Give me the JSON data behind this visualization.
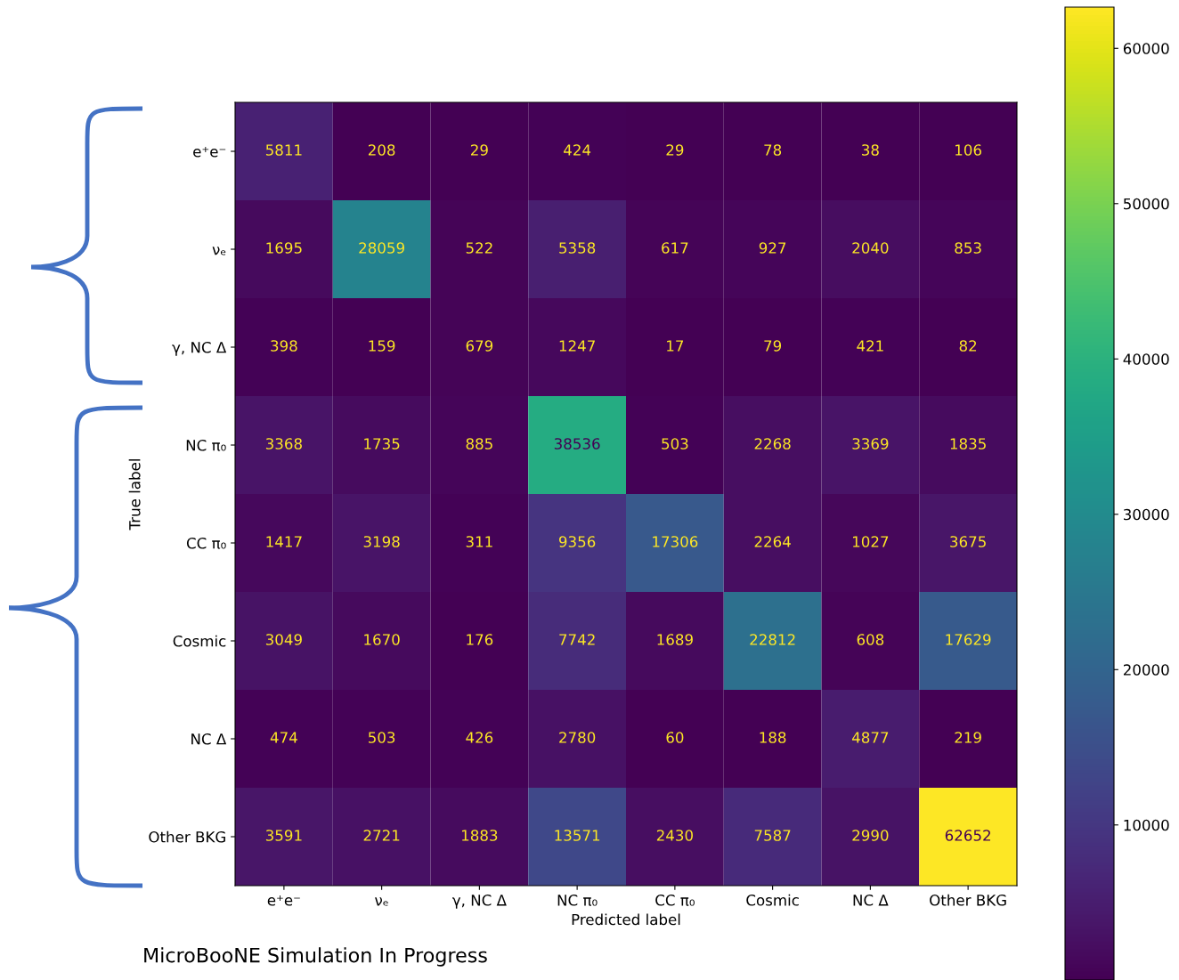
{
  "chart_data": {
    "type": "heatmap",
    "xlabel": "Predicted label",
    "ylabel": "True label",
    "categories": [
      "e⁺e⁻",
      "νₑ",
      "γ, NC Δ",
      "NC π₀",
      "CC π₀",
      "Cosmic",
      "NC Δ",
      "Other BKG"
    ],
    "y_categories": [
      "e⁺e⁻",
      "νₑ",
      "γ, NC Δ",
      "NC π₀",
      "CC π₀",
      "Cosmic",
      "NC Δ",
      "Other BKG"
    ],
    "cells": [
      [
        5811,
        208,
        29,
        424,
        29,
        78,
        38,
        106
      ],
      [
        1695,
        28059,
        522,
        5358,
        617,
        927,
        2040,
        853
      ],
      [
        398,
        159,
        679,
        1247,
        17,
        79,
        421,
        82
      ],
      [
        3368,
        1735,
        885,
        38536,
        503,
        2268,
        3369,
        1835
      ],
      [
        1417,
        3198,
        311,
        9356,
        17306,
        2264,
        1027,
        3675
      ],
      [
        3049,
        1670,
        176,
        7742,
        1689,
        22812,
        608,
        17629
      ],
      [
        474,
        503,
        426,
        2780,
        60,
        188,
        4877,
        219
      ],
      [
        3591,
        2721,
        1883,
        13571,
        2430,
        7587,
        2990,
        62652
      ]
    ],
    "clim": [
      17,
      62652
    ],
    "cticks": [
      10000,
      20000,
      30000,
      40000,
      50000,
      60000
    ],
    "data_labels": true,
    "grid": false,
    "annotations": [
      "MicroBooNE Simulation In Progress"
    ]
  }
}
